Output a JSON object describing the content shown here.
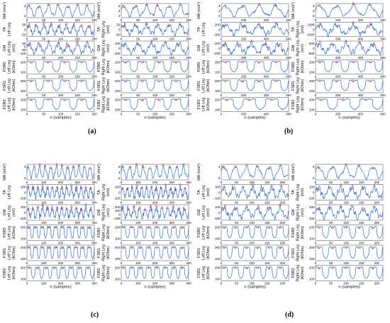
{
  "figure": {
    "panel_labels": [
      "(a)",
      "(b)",
      "(c)",
      "(d)"
    ],
    "xlabel": "n (samples)"
  },
  "colors": {
    "signal": "#2f6fd6",
    "marker": "#e03030",
    "axes": "#444444",
    "background": "#ffffff"
  },
  "chart_data": [
    {
      "panel": "(a)",
      "type": "line",
      "x_range": [
        0,
        200
      ],
      "x_ticks": [
        0,
        50,
        100,
        150,
        200
      ],
      "columns": [
        {
          "rows": [
            {
              "ylabel": "MA (m/s²)",
              "ticks": [
                "4",
                "2"
              ],
              "peaks": 7
            },
            {
              "ylabel": "TA Left Leg",
              "ticks": [
                "50",
                "0",
                "-50"
              ],
              "peaks": 9
            },
            {
              "ylabel": "GM Left Leg (mV)",
              "ticks": [
                "50",
                "0",
                "-50",
                "-100"
              ],
              "peaks": 7
            },
            {
              "ylabel": "FSR0 Left Leg (kOhm)",
              "ticks": [
                "200",
                "100"
              ],
              "peaks": 4
            },
            {
              "ylabel": "FSR1 Left Leg (kOhm)",
              "ticks": [
                "200",
                "100"
              ],
              "peaks": 4
            },
            {
              "ylabel": "FSR2 Left Leg (kOhm)",
              "ticks": [
                "200",
                "100"
              ],
              "peaks": 4
            }
          ]
        },
        {
          "rows": [
            {
              "ylabel": "MA (m/s²)",
              "ticks": [
                "6",
                "4",
                "2"
              ],
              "peaks": 6
            },
            {
              "ylabel": "TA Right Leg (mV)",
              "ticks": [
                "50",
                "0",
                "-50"
              ],
              "peaks": 6
            },
            {
              "ylabel": "GM Right Leg (mV)",
              "ticks": [
                "100",
                "0",
                "-100"
              ],
              "peaks": 5
            },
            {
              "ylabel": "FSR0 Right Leg (kOhm)",
              "ticks": [
                "200",
                "100"
              ],
              "peaks": 4
            },
            {
              "ylabel": "FSR1 Right Leg (kOhm)",
              "ticks": [
                "200",
                "100"
              ],
              "peaks": 4
            },
            {
              "ylabel": "FSR2 Right Leg (kOhm)",
              "ticks": [
                "200",
                "100"
              ],
              "peaks": 4
            }
          ]
        }
      ]
    },
    {
      "panel": "(b)",
      "type": "line",
      "x_range": [
        0,
        600
      ],
      "x_ticks": [
        0,
        200,
        400,
        600
      ],
      "columns": [
        {
          "rows": [
            {
              "ylabel": "MA (m/s²)",
              "ticks": [
                "4",
                "2",
                "0"
              ],
              "peaks": 4
            },
            {
              "ylabel": "TA Left Leg",
              "ticks": [
                "200",
                "0",
                "-200"
              ],
              "peaks": 4
            },
            {
              "ylabel": "GM Left Leg (mV)",
              "ticks": [
                "200",
                "0",
                "-200"
              ],
              "peaks": 5
            },
            {
              "ylabel": "FSR0 Left Leg (kOhm)",
              "ticks": [
                "200",
                "100"
              ],
              "peaks": 4
            },
            {
              "ylabel": "FSR1 Left Leg (kOhm)",
              "ticks": [
                "200",
                "100"
              ],
              "peaks": 4
            },
            {
              "ylabel": "FSR2 Left Leg (kOhm)",
              "ticks": [
                "200",
                "100"
              ],
              "peaks": 3
            }
          ]
        },
        {
          "rows": [
            {
              "ylabel": "MA (m/s²)",
              "ticks": [
                "4",
                "2",
                "0"
              ],
              "peaks": 4
            },
            {
              "ylabel": "TA Right Leg (mV)",
              "ticks": [
                "1000",
                "0",
                "-1000"
              ],
              "peaks": 4
            },
            {
              "ylabel": "GM Right Leg (mV)",
              "ticks": [
                "500",
                "0",
                "-500"
              ],
              "peaks": 5
            },
            {
              "ylabel": "FSR0 Right Leg (kOhm)",
              "ticks": [
                "200",
                "100"
              ],
              "peaks": 4
            },
            {
              "ylabel": "FSR1 Right Leg (kOhm)",
              "ticks": [
                "200",
                "100"
              ],
              "peaks": 4
            },
            {
              "ylabel": "FSR2 Right Leg (kOhm)",
              "ticks": [
                "200",
                "100"
              ],
              "peaks": 3
            }
          ]
        }
      ]
    },
    {
      "panel": "(c)",
      "type": "line",
      "x_range": [
        0,
        400
      ],
      "x_ticks": [
        0,
        100,
        200,
        300,
        400
      ],
      "columns": [
        {
          "rows": [
            {
              "ylabel": "MA (m/s²)",
              "ticks": [
                "4",
                "2"
              ],
              "peaks": 12
            },
            {
              "ylabel": "TA Left Leg",
              "ticks": [
                "100",
                "0",
                "-100"
              ],
              "peaks": 14
            },
            {
              "ylabel": "GM Left Leg (mV)",
              "ticks": [
                "100",
                "0",
                "-100"
              ],
              "peaks": 14
            },
            {
              "ylabel": "FSR0 Left Leg (kOhm)",
              "ticks": [
                "200",
                "100"
              ],
              "peaks": 10
            },
            {
              "ylabel": "FSR1 Left Leg (kOhm)",
              "ticks": [
                "200",
                "100"
              ],
              "peaks": 10
            },
            {
              "ylabel": "FSR2 Left Leg (kOhm)",
              "ticks": [
                "200",
                "100"
              ],
              "peaks": 8
            }
          ]
        },
        {
          "rows": [
            {
              "ylabel": "MA (m/s²)",
              "ticks": [
                "6",
                "4",
                "2"
              ],
              "peaks": 10
            },
            {
              "ylabel": "TA Right Leg (mV)",
              "ticks": [
                "100",
                "0",
                "-100"
              ],
              "peaks": 14
            },
            {
              "ylabel": "GM Right Leg (mV)",
              "ticks": [
                "200",
                "100",
                "0",
                "-100"
              ],
              "peaks": 12
            },
            {
              "ylabel": "FSR0 Right Leg (kOhm)",
              "ticks": [
                "200",
                "100"
              ],
              "peaks": 8
            },
            {
              "ylabel": "FSR1 Right Leg (kOhm)",
              "ticks": [
                "200",
                "100"
              ],
              "peaks": 8
            },
            {
              "ylabel": "FSR2 Right Leg (kOhm)",
              "ticks": [
                "200",
                "100"
              ],
              "peaks": 8
            }
          ]
        }
      ]
    },
    {
      "panel": "(d)",
      "type": "line",
      "x_range": [
        0,
        220
      ],
      "x_ticks": [
        0,
        50,
        100,
        150,
        200
      ],
      "columns": [
        {
          "rows": [
            {
              "ylabel": "MA (m/s²)",
              "ticks": [
                "4",
                "2"
              ],
              "peaks": 6
            },
            {
              "ylabel": "TA Left Leg (mV)",
              "ticks": [
                "100",
                "0",
                "-100"
              ],
              "peaks": 7
            },
            {
              "ylabel": "GM Left Leg (mV)",
              "ticks": [
                "100",
                "0",
                "-100"
              ],
              "peaks": 6
            },
            {
              "ylabel": "FSR0 Left Leg (kOhm)",
              "ticks": [
                "200",
                "100"
              ],
              "peaks": 6
            },
            {
              "ylabel": "FSR1 Left Leg (kOhm)",
              "ticks": [
                "200",
                "100"
              ],
              "peaks": 6
            },
            {
              "ylabel": "FSR2 Left Leg (kOhm)",
              "ticks": [
                "200",
                "100"
              ],
              "peaks": 6
            }
          ]
        },
        {
          "rows": [
            {
              "ylabel": "MA (m/s²)",
              "ticks": [
                "4",
                "2"
              ],
              "peaks": 5
            },
            {
              "ylabel": "TA Right Leg (mV)",
              "ticks": [
                "100",
                "0",
                "-100"
              ],
              "peaks": 6
            },
            {
              "ylabel": "GM Right Leg (mV)",
              "ticks": [
                "100",
                "0",
                "-100"
              ],
              "peaks": 6
            },
            {
              "ylabel": "FSR0 Right Leg (kOhm)",
              "ticks": [
                "200",
                "100"
              ],
              "peaks": 5
            },
            {
              "ylabel": "FSR1 Right Leg (kOhm)",
              "ticks": [
                "200",
                "100"
              ],
              "peaks": 5
            },
            {
              "ylabel": "FSR2 Right Leg (kOhm)",
              "ticks": [
                "200",
                "100"
              ],
              "peaks": 5
            }
          ]
        }
      ]
    }
  ]
}
